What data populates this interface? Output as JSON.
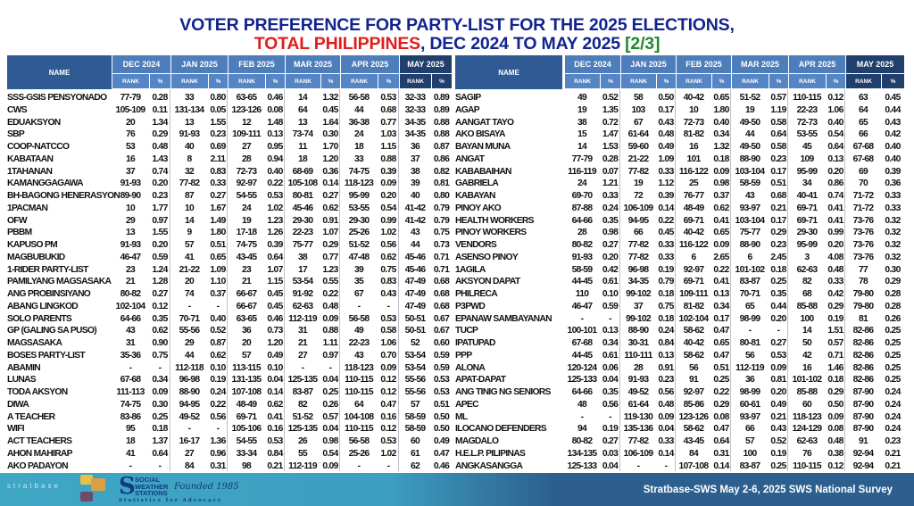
{
  "title": {
    "line1": "VOTER PREFERENCE FOR PARTY-LIST FOR THE 2025 ELECTIONS,",
    "line2_red": "TOTAL PHILIPPINES",
    "line2_mid": ", DEC 2024 TO MAY 2025 ",
    "line2_green": "[2/3]"
  },
  "table": {
    "name_header": "NAME",
    "months": [
      "DEC 2024",
      "JAN 2025",
      "FEB 2025",
      "MAR 2025",
      "APR 2025",
      "MAY 2025"
    ],
    "rank_label": "RANK",
    "pct_label": "%",
    "left_rows": [
      [
        "SSS-GSIS PENSYONADO",
        "77-79",
        "0.28",
        "33",
        "0.80",
        "63-65",
        "0.46",
        "14",
        "1.32",
        "56-58",
        "0.53",
        "32-33",
        "0.89"
      ],
      [
        "CWS",
        "105-109",
        "0.11",
        "131-134",
        "0.05",
        "123-126",
        "0.08",
        "64",
        "0.45",
        "44",
        "0.68",
        "32-33",
        "0.89"
      ],
      [
        "EDUAKSYON",
        "20",
        "1.34",
        "13",
        "1.55",
        "12",
        "1.48",
        "13",
        "1.64",
        "36-38",
        "0.77",
        "34-35",
        "0.88"
      ],
      [
        "SBP",
        "76",
        "0.29",
        "91-93",
        "0.23",
        "109-111",
        "0.13",
        "73-74",
        "0.30",
        "24",
        "1.03",
        "34-35",
        "0.88"
      ],
      [
        "COOP-NATCCO",
        "53",
        "0.48",
        "40",
        "0.69",
        "27",
        "0.95",
        "11",
        "1.70",
        "18",
        "1.15",
        "36",
        "0.87"
      ],
      [
        "KABATAAN",
        "16",
        "1.43",
        "8",
        "2.11",
        "28",
        "0.94",
        "18",
        "1.20",
        "33",
        "0.88",
        "37",
        "0.86"
      ],
      [
        "1TAHANAN",
        "37",
        "0.74",
        "32",
        "0.83",
        "72-73",
        "0.40",
        "68-69",
        "0.36",
        "74-75",
        "0.39",
        "38",
        "0.82"
      ],
      [
        "KAMANGGAGAWA",
        "91-93",
        "0.20",
        "77-82",
        "0.33",
        "92-97",
        "0.22",
        "105-108",
        "0.14",
        "118-123",
        "0.09",
        "39",
        "0.81"
      ],
      [
        "BH-BAGONG HENERASYON",
        "89-90",
        "0.23",
        "87",
        "0.27",
        "54-55",
        "0.53",
        "80-81",
        "0.27",
        "95-99",
        "0.20",
        "40",
        "0.80"
      ],
      [
        "1PACMAN",
        "10",
        "1.77",
        "10",
        "1.67",
        "24",
        "1.02",
        "45-46",
        "0.62",
        "53-55",
        "0.54",
        "41-42",
        "0.79"
      ],
      [
        "OFW",
        "29",
        "0.97",
        "14",
        "1.49",
        "19",
        "1.23",
        "29-30",
        "0.91",
        "29-30",
        "0.99",
        "41-42",
        "0.79"
      ],
      [
        "PBBM",
        "13",
        "1.55",
        "9",
        "1.80",
        "17-18",
        "1.26",
        "22-23",
        "1.07",
        "25-26",
        "1.02",
        "43",
        "0.75"
      ],
      [
        "KAPUSO PM",
        "91-93",
        "0.20",
        "57",
        "0.51",
        "74-75",
        "0.39",
        "75-77",
        "0.29",
        "51-52",
        "0.56",
        "44",
        "0.73"
      ],
      [
        "MAGBUBUKID",
        "46-47",
        "0.59",
        "41",
        "0.65",
        "43-45",
        "0.64",
        "38",
        "0.77",
        "47-48",
        "0.62",
        "45-46",
        "0.71"
      ],
      [
        "1-RIDER PARTY-LIST",
        "23",
        "1.24",
        "21-22",
        "1.09",
        "23",
        "1.07",
        "17",
        "1.23",
        "39",
        "0.75",
        "45-46",
        "0.71"
      ],
      [
        "PAMILYANG MAGSASAKA",
        "21",
        "1.28",
        "20",
        "1.10",
        "21",
        "1.15",
        "53-54",
        "0.55",
        "35",
        "0.83",
        "47-49",
        "0.68"
      ],
      [
        "ANG PROBINSIYANO",
        "80-82",
        "0.27",
        "74",
        "0.37",
        "66-67",
        "0.45",
        "91-92",
        "0.22",
        "67",
        "0.43",
        "47-49",
        "0.68"
      ],
      [
        "ABANG LINGKOD",
        "102-104",
        "0.12",
        "-",
        "-",
        "66-67",
        "0.45",
        "62-63",
        "0.48",
        "-",
        "-",
        "47-49",
        "0.68"
      ],
      [
        "SOLO PARENTS",
        "64-66",
        "0.35",
        "70-71",
        "0.40",
        "63-65",
        "0.46",
        "112-119",
        "0.09",
        "56-58",
        "0.53",
        "50-51",
        "0.67"
      ],
      [
        "GP (GALING SA PUSO)",
        "43",
        "0.62",
        "55-56",
        "0.52",
        "36",
        "0.73",
        "31",
        "0.88",
        "49",
        "0.58",
        "50-51",
        "0.67"
      ],
      [
        "MAGSASAKA",
        "31",
        "0.90",
        "29",
        "0.87",
        "20",
        "1.20",
        "21",
        "1.11",
        "22-23",
        "1.06",
        "52",
        "0.60"
      ],
      [
        "BOSES PARTY-LIST",
        "35-36",
        "0.75",
        "44",
        "0.62",
        "57",
        "0.49",
        "27",
        "0.97",
        "43",
        "0.70",
        "53-54",
        "0.59"
      ],
      [
        "ABAMIN",
        "-",
        "-",
        "112-118",
        "0.10",
        "113-115",
        "0.10",
        "-",
        "-",
        "118-123",
        "0.09",
        "53-54",
        "0.59"
      ],
      [
        "LUNAS",
        "67-68",
        "0.34",
        "96-98",
        "0.19",
        "131-135",
        "0.04",
        "125-135",
        "0.04",
        "110-115",
        "0.12",
        "55-56",
        "0.53"
      ],
      [
        "TODA AKSYON",
        "111-113",
        "0.09",
        "88-90",
        "0.24",
        "107-108",
        "0.14",
        "83-87",
        "0.25",
        "110-115",
        "0.12",
        "55-56",
        "0.53"
      ],
      [
        "DIWA",
        "74-75",
        "0.30",
        "94-95",
        "0.22",
        "48-49",
        "0.62",
        "82",
        "0.26",
        "64",
        "0.47",
        "57",
        "0.51"
      ],
      [
        "A TEACHER",
        "83-86",
        "0.25",
        "49-52",
        "0.56",
        "69-71",
        "0.41",
        "51-52",
        "0.57",
        "104-108",
        "0.16",
        "58-59",
        "0.50"
      ],
      [
        "WIFI",
        "95",
        "0.18",
        "-",
        "-",
        "105-106",
        "0.16",
        "125-135",
        "0.04",
        "110-115",
        "0.12",
        "58-59",
        "0.50"
      ],
      [
        "ACT TEACHERS",
        "18",
        "1.37",
        "16-17",
        "1.36",
        "54-55",
        "0.53",
        "26",
        "0.98",
        "56-58",
        "0.53",
        "60",
        "0.49"
      ],
      [
        "AHON MAHIRAP",
        "41",
        "0.64",
        "27",
        "0.96",
        "33-34",
        "0.84",
        "55",
        "0.54",
        "25-26",
        "1.02",
        "61",
        "0.47"
      ],
      [
        "AKO PADAYON",
        "-",
        "-",
        "84",
        "0.31",
        "98",
        "0.21",
        "112-119",
        "0.09",
        "-",
        "-",
        "62",
        "0.46"
      ]
    ],
    "right_rows": [
      [
        "SAGIP",
        "49",
        "0.52",
        "58",
        "0.50",
        "40-42",
        "0.65",
        "51-52",
        "0.57",
        "110-115",
        "0.12",
        "63",
        "0.45"
      ],
      [
        "AGAP",
        "19",
        "1.35",
        "103",
        "0.17",
        "10",
        "1.80",
        "19",
        "1.19",
        "22-23",
        "1.06",
        "64",
        "0.44"
      ],
      [
        "AANGAT TAYO",
        "38",
        "0.72",
        "67",
        "0.43",
        "72-73",
        "0.40",
        "49-50",
        "0.58",
        "72-73",
        "0.40",
        "65",
        "0.43"
      ],
      [
        "AKO BISAYA",
        "15",
        "1.47",
        "61-64",
        "0.48",
        "81-82",
        "0.34",
        "44",
        "0.64",
        "53-55",
        "0.54",
        "66",
        "0.42"
      ],
      [
        "BAYAN MUNA",
        "14",
        "1.53",
        "59-60",
        "0.49",
        "16",
        "1.32",
        "49-50",
        "0.58",
        "45",
        "0.64",
        "67-68",
        "0.40"
      ],
      [
        "ANGAT",
        "77-79",
        "0.28",
        "21-22",
        "1.09",
        "101",
        "0.18",
        "88-90",
        "0.23",
        "109",
        "0.13",
        "67-68",
        "0.40"
      ],
      [
        "KABABAIHAN",
        "116-119",
        "0.07",
        "77-82",
        "0.33",
        "116-122",
        "0.09",
        "103-104",
        "0.17",
        "95-99",
        "0.20",
        "69",
        "0.39"
      ],
      [
        "GABRIELA",
        "24",
        "1.21",
        "19",
        "1.12",
        "25",
        "0.98",
        "58-59",
        "0.51",
        "34",
        "0.86",
        "70",
        "0.36"
      ],
      [
        "KABAYAN",
        "69-70",
        "0.33",
        "72",
        "0.39",
        "76-77",
        "0.37",
        "43",
        "0.68",
        "40-41",
        "0.74",
        "71-72",
        "0.33"
      ],
      [
        "PINOY AKO",
        "87-88",
        "0.24",
        "106-109",
        "0.14",
        "48-49",
        "0.62",
        "93-97",
        "0.21",
        "69-71",
        "0.41",
        "71-72",
        "0.33"
      ],
      [
        "HEALTH WORKERS",
        "64-66",
        "0.35",
        "94-95",
        "0.22",
        "69-71",
        "0.41",
        "103-104",
        "0.17",
        "69-71",
        "0.41",
        "73-76",
        "0.32"
      ],
      [
        "PINOY WORKERS",
        "28",
        "0.98",
        "66",
        "0.45",
        "40-42",
        "0.65",
        "75-77",
        "0.29",
        "29-30",
        "0.99",
        "73-76",
        "0.32"
      ],
      [
        "VENDORS",
        "80-82",
        "0.27",
        "77-82",
        "0.33",
        "116-122",
        "0.09",
        "88-90",
        "0.23",
        "95-99",
        "0.20",
        "73-76",
        "0.32"
      ],
      [
        "ASENSO PINOY",
        "91-93",
        "0.20",
        "77-82",
        "0.33",
        "6",
        "2.65",
        "6",
        "2.45",
        "3",
        "4.08",
        "73-76",
        "0.32"
      ],
      [
        "1AGILA",
        "58-59",
        "0.42",
        "96-98",
        "0.19",
        "92-97",
        "0.22",
        "101-102",
        "0.18",
        "62-63",
        "0.48",
        "77",
        "0.30"
      ],
      [
        "AKSYON DAPAT",
        "44-45",
        "0.61",
        "34-35",
        "0.79",
        "69-71",
        "0.41",
        "83-87",
        "0.25",
        "82",
        "0.33",
        "78",
        "0.29"
      ],
      [
        "PHILRECA",
        "110",
        "0.10",
        "99-102",
        "0.18",
        "109-111",
        "0.13",
        "70-71",
        "0.35",
        "68",
        "0.42",
        "79-80",
        "0.28"
      ],
      [
        "P3PWD",
        "46-47",
        "0.59",
        "37",
        "0.75",
        "81-82",
        "0.34",
        "65",
        "0.44",
        "85-88",
        "0.29",
        "79-80",
        "0.28"
      ],
      [
        "EPANAW SAMBAYANAN",
        "-",
        "-",
        "99-102",
        "0.18",
        "102-104",
        "0.17",
        "98-99",
        "0.20",
        "100",
        "0.19",
        "81",
        "0.26"
      ],
      [
        "TUCP",
        "100-101",
        "0.13",
        "88-90",
        "0.24",
        "58-62",
        "0.47",
        "-",
        "-",
        "14",
        "1.51",
        "82-86",
        "0.25"
      ],
      [
        "IPATUPAD",
        "67-68",
        "0.34",
        "30-31",
        "0.84",
        "40-42",
        "0.65",
        "80-81",
        "0.27",
        "50",
        "0.57",
        "82-86",
        "0.25"
      ],
      [
        "PPP",
        "44-45",
        "0.61",
        "110-111",
        "0.13",
        "58-62",
        "0.47",
        "56",
        "0.53",
        "42",
        "0.71",
        "82-86",
        "0.25"
      ],
      [
        "ALONA",
        "120-124",
        "0.06",
        "28",
        "0.91",
        "56",
        "0.51",
        "112-119",
        "0.09",
        "16",
        "1.46",
        "82-86",
        "0.25"
      ],
      [
        "APAT-DAPAT",
        "125-133",
        "0.04",
        "91-93",
        "0.23",
        "91",
        "0.25",
        "36",
        "0.81",
        "101-102",
        "0.18",
        "82-86",
        "0.25"
      ],
      [
        "ANG TINIG NG SENIORS",
        "64-66",
        "0.35",
        "49-52",
        "0.56",
        "92-97",
        "0.22",
        "98-99",
        "0.20",
        "85-88",
        "0.29",
        "87-90",
        "0.24"
      ],
      [
        "APEC",
        "48",
        "0.56",
        "61-64",
        "0.48",
        "85-86",
        "0.29",
        "60-61",
        "0.49",
        "60",
        "0.50",
        "87-90",
        "0.24"
      ],
      [
        "ML",
        "-",
        "-",
        "119-130",
        "0.09",
        "123-126",
        "0.08",
        "93-97",
        "0.21",
        "118-123",
        "0.09",
        "87-90",
        "0.24"
      ],
      [
        "ILOCANO DEFENDERS",
        "94",
        "0.19",
        "135-136",
        "0.04",
        "58-62",
        "0.47",
        "66",
        "0.43",
        "124-129",
        "0.08",
        "87-90",
        "0.24"
      ],
      [
        "MAGDALO",
        "80-82",
        "0.27",
        "77-82",
        "0.33",
        "43-45",
        "0.64",
        "57",
        "0.52",
        "62-63",
        "0.48",
        "91",
        "0.23"
      ],
      [
        "H.E.L.P. PILIPINAS",
        "134-135",
        "0.03",
        "106-109",
        "0.14",
        "84",
        "0.31",
        "100",
        "0.19",
        "76",
        "0.38",
        "92-94",
        "0.21"
      ],
      [
        "ANGKASANGGA",
        "125-133",
        "0.04",
        "-",
        "-",
        "107-108",
        "0.14",
        "83-87",
        "0.25",
        "110-115",
        "0.12",
        "92-94",
        "0.21"
      ]
    ]
  },
  "footer": {
    "stratbase_logo": "stratbase",
    "sws_logo": [
      "SOCIAL",
      "WEATHER",
      "STATIONS"
    ],
    "founded": "Founded 1985",
    "tagline": "Statistics for Advocacy",
    "source": "Stratbase-SWS May 2-6, 2025 SWS National Survey"
  }
}
